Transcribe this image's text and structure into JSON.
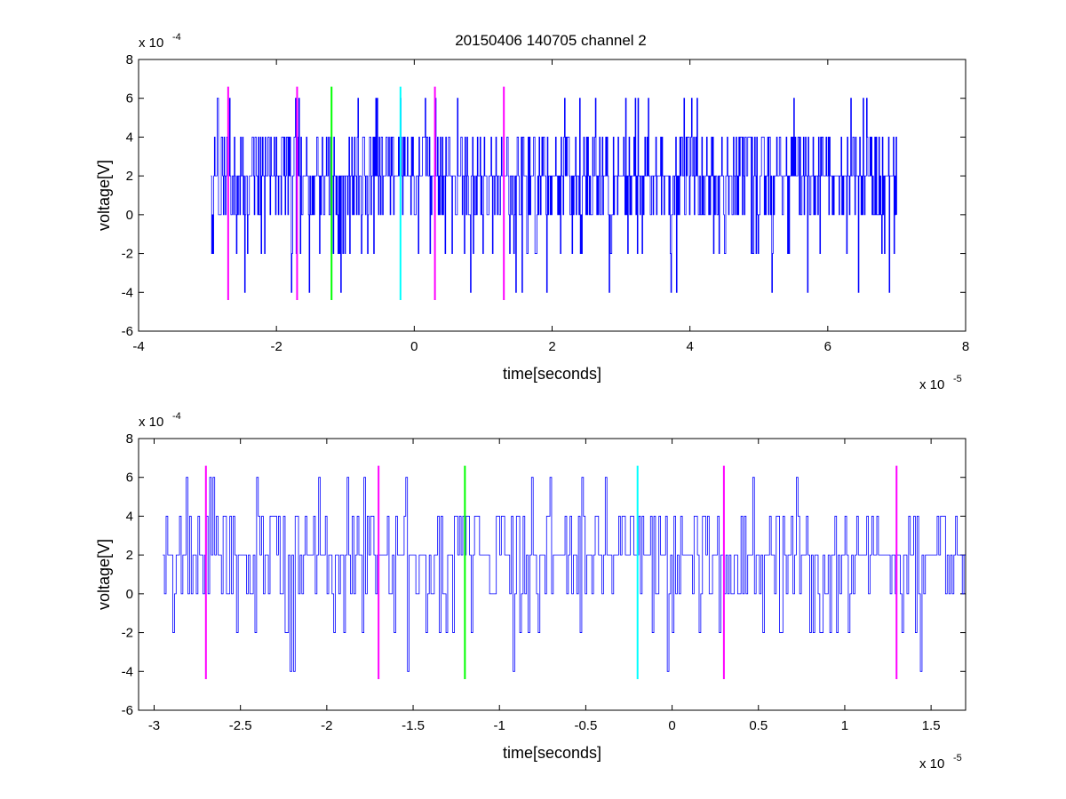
{
  "figure": {
    "title": "20150406 140705 channel 2",
    "background": "#ffffff"
  },
  "colors": {
    "signal": "#0000ff",
    "marker_magenta": "#ff00ff",
    "marker_green": "#00ff00",
    "marker_cyan": "#00ffff"
  },
  "chart_data": [
    {
      "type": "line",
      "name": "top",
      "xlabel": "time[seconds]",
      "ylabel": "voltage[V]",
      "x_exponent_label": "x 10",
      "x_exponent": "-5",
      "y_exponent_label": "x 10",
      "y_exponent": "-4",
      "xlim": [
        -4,
        8
      ],
      "ylim": [
        -6,
        8
      ],
      "x_ticks": [
        -4,
        -2,
        0,
        2,
        4,
        6,
        8
      ],
      "x_tick_labels": [
        "-4",
        "-2",
        "0",
        "2",
        "4",
        "6",
        "8"
      ],
      "y_ticks": [
        -6,
        -4,
        -2,
        0,
        2,
        4,
        6,
        8
      ],
      "y_tick_labels": [
        "-6",
        "-4",
        "-2",
        "0",
        "2",
        "4",
        "6",
        "8"
      ],
      "grid": false,
      "signal": {
        "x_start": -2.95,
        "x_end": 7.0,
        "levels": [
          -4,
          -2,
          0,
          2,
          4,
          6
        ],
        "baseline": 2,
        "samples": 1000,
        "seed": 7
      },
      "markers": [
        {
          "x": -2.7,
          "color": "marker_magenta",
          "y_range": [
            -4.4,
            6.6
          ]
        },
        {
          "x": -1.7,
          "color": "marker_magenta",
          "y_range": [
            -4.4,
            6.6
          ]
        },
        {
          "x": -1.2,
          "color": "marker_green",
          "y_range": [
            -4.4,
            6.6
          ]
        },
        {
          "x": -0.2,
          "color": "marker_cyan",
          "y_range": [
            -4.4,
            6.6
          ]
        },
        {
          "x": 0.3,
          "color": "marker_magenta",
          "y_range": [
            -4.4,
            6.6
          ]
        },
        {
          "x": 1.3,
          "color": "marker_magenta",
          "y_range": [
            -4.4,
            6.6
          ]
        }
      ]
    },
    {
      "type": "line",
      "name": "bottom",
      "xlabel": "time[seconds]",
      "ylabel": "voltage[V]",
      "x_exponent_label": "x 10",
      "x_exponent": "-5",
      "y_exponent_label": "x 10",
      "y_exponent": "-4",
      "xlim": [
        -3.09,
        1.7
      ],
      "ylim": [
        -6,
        8
      ],
      "x_ticks": [
        -3,
        -2.5,
        -2,
        -1.5,
        -1,
        -0.5,
        0,
        0.5,
        1,
        1.5
      ],
      "x_tick_labels": [
        "-3",
        "-2.5",
        "-2",
        "-1.5",
        "-1",
        "-0.5",
        "0",
        "0.5",
        "1",
        "1.5"
      ],
      "y_ticks": [
        -6,
        -4,
        -2,
        0,
        2,
        4,
        6,
        8
      ],
      "y_tick_labels": [
        "-6",
        "-4",
        "-2",
        "0",
        "2",
        "4",
        "6",
        "8"
      ],
      "grid": false,
      "signal": {
        "x_start": -2.95,
        "x_end": 1.7,
        "levels": [
          -4,
          -2,
          0,
          2,
          4,
          6
        ],
        "baseline": 2,
        "samples": 480,
        "seed": 13
      },
      "markers": [
        {
          "x": -2.7,
          "color": "marker_magenta",
          "y_range": [
            -4.4,
            6.6
          ]
        },
        {
          "x": -1.7,
          "color": "marker_magenta",
          "y_range": [
            -4.4,
            6.6
          ]
        },
        {
          "x": -1.2,
          "color": "marker_green",
          "y_range": [
            -4.4,
            6.6
          ]
        },
        {
          "x": -0.2,
          "color": "marker_cyan",
          "y_range": [
            -4.4,
            6.6
          ]
        },
        {
          "x": 0.3,
          "color": "marker_magenta",
          "y_range": [
            -4.4,
            6.6
          ]
        },
        {
          "x": 1.3,
          "color": "marker_magenta",
          "y_range": [
            -4.4,
            6.6
          ]
        }
      ]
    }
  ]
}
